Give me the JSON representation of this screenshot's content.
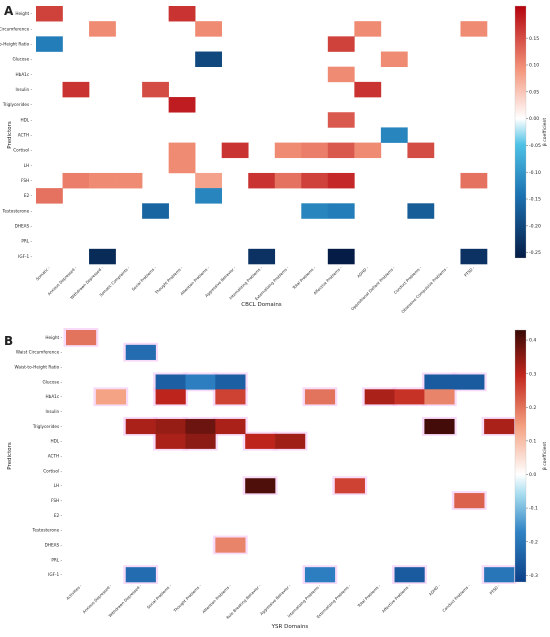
{
  "chart_data": [
    {
      "panel": "A",
      "type": "heatmap",
      "xlabel": "CBCL Domains",
      "ylabel": "Predictors",
      "colorbar_label": "β coefficient",
      "colorbar_ticks": [
        0.15,
        0.1,
        0.05,
        0.0,
        -0.05,
        -0.1,
        -0.15,
        -0.2,
        -0.25
      ],
      "vlim": [
        -0.26,
        0.21
      ],
      "columns": [
        "Somatic",
        "Anxious Depressed",
        "Withdrawn Depressed",
        "Somatic Complaints",
        "Social Problems",
        "Thought Problems",
        "Attention Problems",
        "Aggressive Behavior",
        "Internalizing Problems",
        "Externalizing Problems",
        "Total Problems",
        "Affective Problems",
        "ADHD",
        "Oppositional Defiant Problems",
        "Conduct Problems",
        "Obsessive Compulsive Problems",
        "PTSD"
      ],
      "rows": [
        "Height",
        "Waist Circumference",
        "Waist-to-Height Ratio",
        "Glucose",
        "HbA1c",
        "Insulin",
        "Triglycerides",
        "HDL",
        "ACTH",
        "Cortisol",
        "LH",
        "FSH",
        "E2",
        "Testosterone",
        "DHEAS",
        "PRL",
        "IGF-1"
      ],
      "cells": [
        [
          0,
          0,
          0.16
        ],
        [
          0,
          5,
          0.17
        ],
        [
          1,
          2,
          0.1
        ],
        [
          1,
          6,
          0.1
        ],
        [
          1,
          12,
          0.1
        ],
        [
          1,
          16,
          0.1
        ],
        [
          2,
          0,
          -0.13
        ],
        [
          2,
          11,
          0.16
        ],
        [
          3,
          6,
          -0.2
        ],
        [
          3,
          13,
          0.1
        ],
        [
          4,
          11,
          0.1
        ],
        [
          5,
          1,
          0.17
        ],
        [
          5,
          4,
          0.15
        ],
        [
          5,
          12,
          0.17
        ],
        [
          6,
          5,
          0.19
        ],
        [
          7,
          11,
          0.14
        ],
        [
          8,
          13,
          -0.12
        ],
        [
          9,
          5,
          0.1
        ],
        [
          9,
          7,
          0.17
        ],
        [
          9,
          9,
          0.1
        ],
        [
          9,
          10,
          0.11
        ],
        [
          9,
          11,
          0.14
        ],
        [
          9,
          12,
          0.1
        ],
        [
          9,
          14,
          0.15
        ],
        [
          10,
          5,
          0.1
        ],
        [
          11,
          1,
          0.11
        ],
        [
          11,
          2,
          0.1
        ],
        [
          11,
          3,
          0.1
        ],
        [
          11,
          6,
          0.08
        ],
        [
          11,
          8,
          0.17
        ],
        [
          11,
          9,
          0.12
        ],
        [
          11,
          10,
          0.16
        ],
        [
          11,
          11,
          0.18
        ],
        [
          11,
          16,
          0.12
        ],
        [
          12,
          0,
          0.12
        ],
        [
          12,
          6,
          -0.12
        ],
        [
          13,
          4,
          -0.16
        ],
        [
          13,
          10,
          -0.12
        ],
        [
          13,
          11,
          -0.13
        ],
        [
          13,
          14,
          -0.17
        ],
        [
          16,
          2,
          -0.24
        ],
        [
          16,
          8,
          -0.23
        ],
        [
          16,
          11,
          -0.26
        ],
        [
          16,
          16,
          -0.23
        ]
      ]
    },
    {
      "panel": "B",
      "type": "heatmap",
      "xlabel": "YSR Domains",
      "ylabel": "Predictors",
      "colorbar_label": "β coefficient",
      "colorbar_ticks": [
        0.4,
        0.3,
        0.2,
        0.1,
        0.0,
        -0.1,
        -0.2,
        -0.3
      ],
      "vlim": [
        -0.32,
        0.43
      ],
      "columns": [
        "Activities",
        "Anxious Depressed",
        "Withdrawn Depressed",
        "Social Problems",
        "Thought Problems",
        "Attention Problems",
        "Rule Breaking Behavior",
        "Aggressive Behavior",
        "Internalizing Problems",
        "Externalizing Problems",
        "Total Problems",
        "Affective Problems",
        "ADHD",
        "Conduct Problems",
        "PTSD"
      ],
      "rows": [
        "Height",
        "Waist Circumference",
        "Waist-to-Height Ratio",
        "Glucose",
        "HbA1c",
        "Insulin",
        "Triglycerides",
        "HDL",
        "ACTH",
        "Cortisol",
        "LH",
        "FSH",
        "E2",
        "Testosterone",
        "DHEAS",
        "PRL",
        "IGF-1"
      ],
      "cells": [
        [
          0,
          0,
          0.2
        ],
        [
          1,
          2,
          -0.22
        ],
        [
          3,
          3,
          -0.25
        ],
        [
          3,
          4,
          -0.18
        ],
        [
          3,
          5,
          -0.25
        ],
        [
          3,
          12,
          -0.26
        ],
        [
          3,
          13,
          -0.26
        ],
        [
          4,
          1,
          0.14
        ],
        [
          4,
          3,
          0.3
        ],
        [
          4,
          5,
          0.26
        ],
        [
          4,
          8,
          0.2
        ],
        [
          4,
          10,
          0.32
        ],
        [
          4,
          11,
          0.28
        ],
        [
          4,
          12,
          0.18
        ],
        [
          6,
          2,
          0.32
        ],
        [
          6,
          3,
          0.34
        ],
        [
          6,
          4,
          0.38
        ],
        [
          6,
          5,
          0.32
        ],
        [
          6,
          12,
          0.42
        ],
        [
          6,
          14,
          0.32
        ],
        [
          7,
          3,
          0.32
        ],
        [
          7,
          4,
          0.35
        ],
        [
          7,
          6,
          0.3
        ],
        [
          7,
          7,
          0.33
        ],
        [
          10,
          6,
          0.41
        ],
        [
          10,
          9,
          0.26
        ],
        [
          11,
          13,
          0.22
        ],
        [
          14,
          5,
          0.18
        ],
        [
          16,
          2,
          -0.22
        ],
        [
          16,
          8,
          -0.18
        ],
        [
          16,
          11,
          -0.26
        ],
        [
          16,
          14,
          -0.2
        ]
      ]
    }
  ]
}
